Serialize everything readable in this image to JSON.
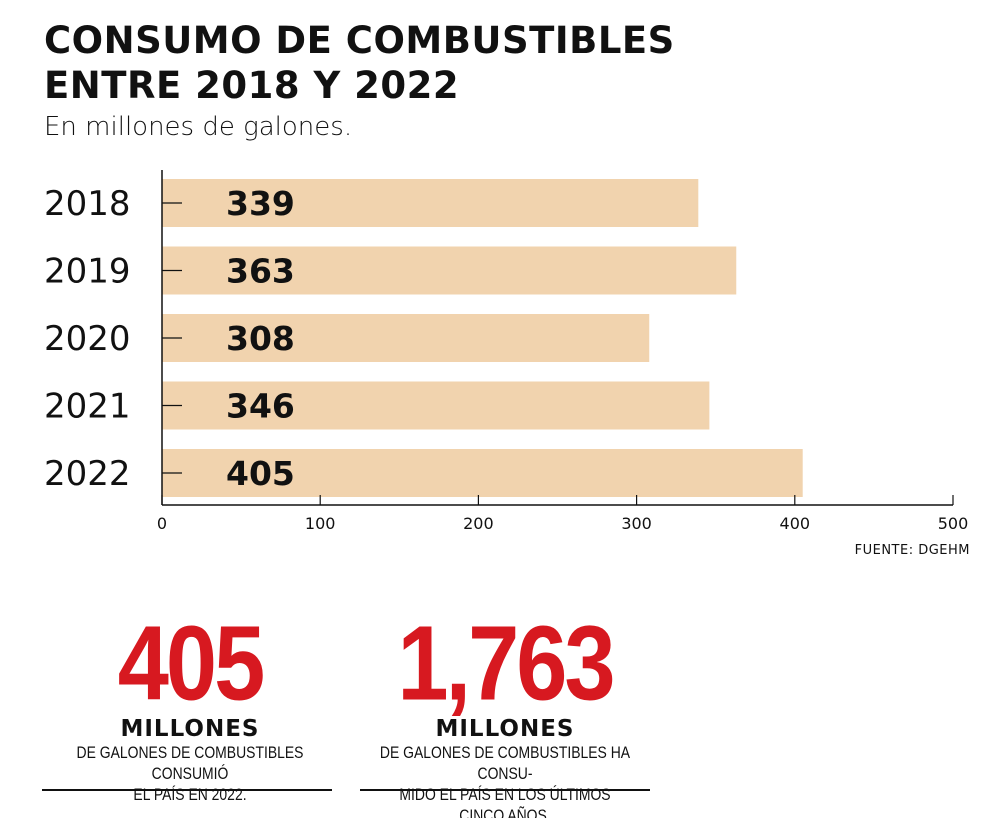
{
  "title_line1": "CONSUMO DE COMBUSTIBLES",
  "title_line2": "ENTRE 2018 Y 2022",
  "subtitle": "En millones de galones.",
  "source": "FUENTE: DGEHM",
  "colors": {
    "bar": "#f1d3ae",
    "accent": "#d71920",
    "text": "#111111"
  },
  "chart_data": {
    "type": "bar",
    "orientation": "horizontal",
    "categories": [
      "2018",
      "2019",
      "2020",
      "2021",
      "2022"
    ],
    "values": [
      339,
      363,
      308,
      346,
      405
    ],
    "data_labels": [
      "339",
      "363",
      "308",
      "346",
      "405"
    ],
    "xlim": [
      0,
      500
    ],
    "xticks": [
      "0",
      "100",
      "200",
      "300",
      "400",
      "500"
    ],
    "grid": false
  },
  "stats": [
    {
      "value": "405",
      "unit": "MILLONES",
      "description": "DE GALONES DE COMBUSTIBLES CONSUMIÓ\nEL PAÍS EN 2022."
    },
    {
      "value": "1,763",
      "unit": "MILLONES",
      "description": "DE GALONES DE COMBUSTIBLES HA CONSU-\nMIDO EL PAÍS EN LOS ÚLTIMOS CINCO AÑOS."
    }
  ]
}
